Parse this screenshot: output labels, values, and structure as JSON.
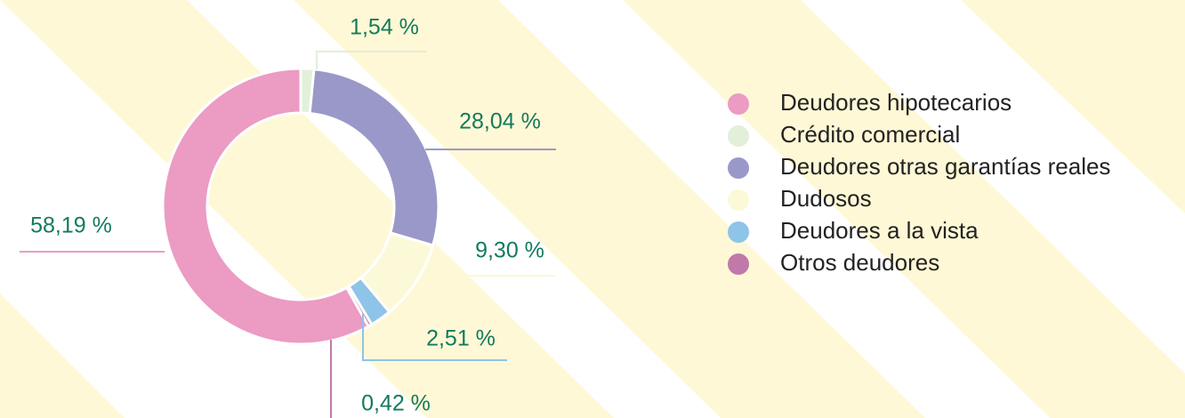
{
  "chart_data": {
    "type": "donut",
    "categories": [
      "Deudores hipotecarios",
      "Crédito comercial",
      "Deudores otras garantías reales",
      "Dudosos",
      "Deudores a la vista",
      "Otros deudores"
    ],
    "values": [
      58.19,
      1.54,
      28.04,
      9.3,
      2.51,
      0.42
    ],
    "value_labels": [
      "58,19 %",
      "1,54 %",
      "28,04 %",
      "9,30 %",
      "2,51 %",
      "0,42 %"
    ],
    "colors": [
      "#ec9bc3",
      "#e2efd9",
      "#9a98c8",
      "#fbf9d8",
      "#8ec4e8",
      "#c079a8"
    ],
    "legend": "right"
  }
}
